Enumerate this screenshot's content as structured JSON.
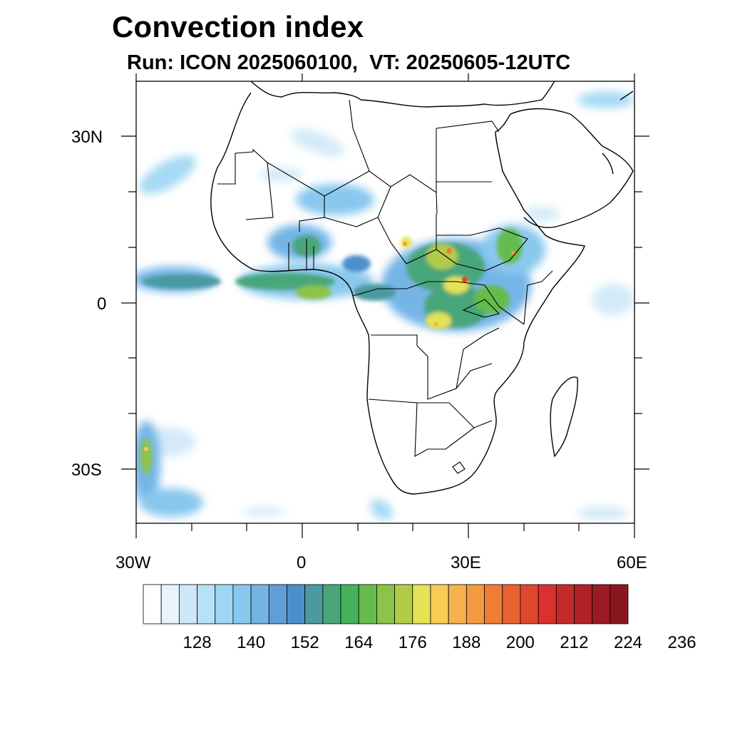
{
  "header": {
    "title": "Convection index",
    "subtitle": "Run: ICON 2025060100,  VT: 20250605-12UTC"
  },
  "axes": {
    "lon_labels": [
      "30W",
      "0",
      "30E",
      "60E"
    ],
    "lat_labels": [
      "30N",
      "0",
      "30S"
    ]
  },
  "colorbar": {
    "labels": [
      "128",
      "140",
      "152",
      "164",
      "176",
      "188",
      "200",
      "212",
      "224",
      "236"
    ],
    "colors": [
      "#ffffff",
      "#e8f4fc",
      "#cfe8f8",
      "#b7e1f7",
      "#9dd6f4",
      "#88c8ee",
      "#75b5e6",
      "#5f9fd9",
      "#4d8fca",
      "#4a9aa0",
      "#48a67a",
      "#46b25a",
      "#66bb4d",
      "#8cc34a",
      "#b2cc48",
      "#e5e255",
      "#f6cc55",
      "#f7b24d",
      "#f59a42",
      "#f17d35",
      "#e8612f",
      "#e0482e",
      "#d9312d",
      "#c52a2b",
      "#b02228",
      "#9c1a23",
      "#8a1720"
    ]
  }
}
